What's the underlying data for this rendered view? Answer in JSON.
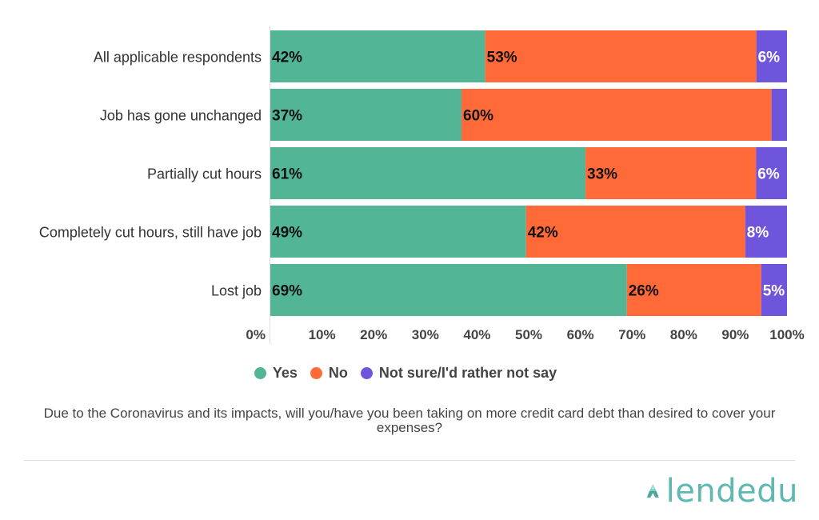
{
  "chart_data": {
    "type": "bar",
    "orientation": "horizontal",
    "stacked": true,
    "categories": [
      "All applicable respondents",
      "Job has gone unchanged",
      "Partially cut hours",
      "Completely cut hours, still have job",
      "Lost job"
    ],
    "series": [
      {
        "name": "Yes",
        "values": [
          42,
          37,
          61,
          49,
          69
        ],
        "labels": [
          "42%",
          "37%",
          "61%",
          "49%",
          "69%"
        ],
        "color": "#52b596"
      },
      {
        "name": "No",
        "values": [
          53,
          60,
          33,
          42,
          26
        ],
        "labels": [
          "53%",
          "60%",
          "33%",
          "42%",
          "26%"
        ],
        "color": "#ff6a38"
      },
      {
        "name": "Not sure/I'd rather not say",
        "values": [
          6,
          3,
          6,
          8,
          5
        ],
        "labels": [
          "6%",
          "",
          "6%",
          "8%",
          "5%"
        ],
        "color": "#6f55db"
      }
    ],
    "xticks": [
      "0%",
      "10%",
      "20%",
      "30%",
      "40%",
      "50%",
      "60%",
      "70%",
      "80%",
      "90%",
      "100%"
    ],
    "xlim": [
      0,
      100
    ],
    "grid": false,
    "legend_position": "bottom",
    "title": "Due to the Coronavirus and its impacts, will you/have you been taking on more credit card debt than desired to cover your expenses?"
  },
  "legend": [
    {
      "label": "Yes",
      "color": "#52b596"
    },
    {
      "label": "No",
      "color": "#ff6a38"
    },
    {
      "label": "Not sure/I'd rather not say",
      "color": "#6f55db"
    }
  ],
  "question": "Due to the Coronavirus and its impacts, will you/have you been taking on more credit card debt than desired to cover your expenses?",
  "logo": {
    "text": "lendedu",
    "icon": "lendedu-logo-icon"
  }
}
